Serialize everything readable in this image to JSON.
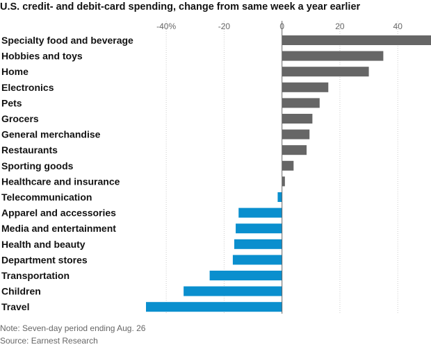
{
  "chart_data": {
    "type": "bar",
    "orientation": "horizontal",
    "title": "U.S. credit- and debit-card spending, change from same week a year earlier",
    "categories": [
      "Specialty food and beverage",
      "Hobbies and toys",
      "Home",
      "Electronics",
      "Pets",
      "Grocers",
      "General merchandise",
      "Restaurants",
      "Sporting goods",
      "Healthcare and insurance",
      "Telecommunication",
      "Apparel and accessories",
      "Media and entertainment",
      "Health and beauty",
      "Department stores",
      "Transportation",
      "Children",
      "Travel"
    ],
    "values": [
      52,
      35,
      30,
      16,
      13,
      10.5,
      9.5,
      8.5,
      4,
      1,
      -1.5,
      -15,
      -16,
      -16.5,
      -17,
      -25,
      -34,
      -47
    ],
    "xlim": [
      -47,
      51
    ],
    "xticks": [
      -40,
      -20,
      0,
      20,
      40
    ],
    "xtick_labels": [
      "-40%",
      "-20",
      "0",
      "20",
      "40"
    ],
    "grid": "vertical",
    "colors": {
      "positive": "#666666",
      "negative": "#0a8fce",
      "gridline": "#cccccc",
      "zero_line": "#666666"
    }
  },
  "footnotes": {
    "note": "Note: Seven-day period ending Aug. 26",
    "source": "Source: Earnest Research"
  }
}
